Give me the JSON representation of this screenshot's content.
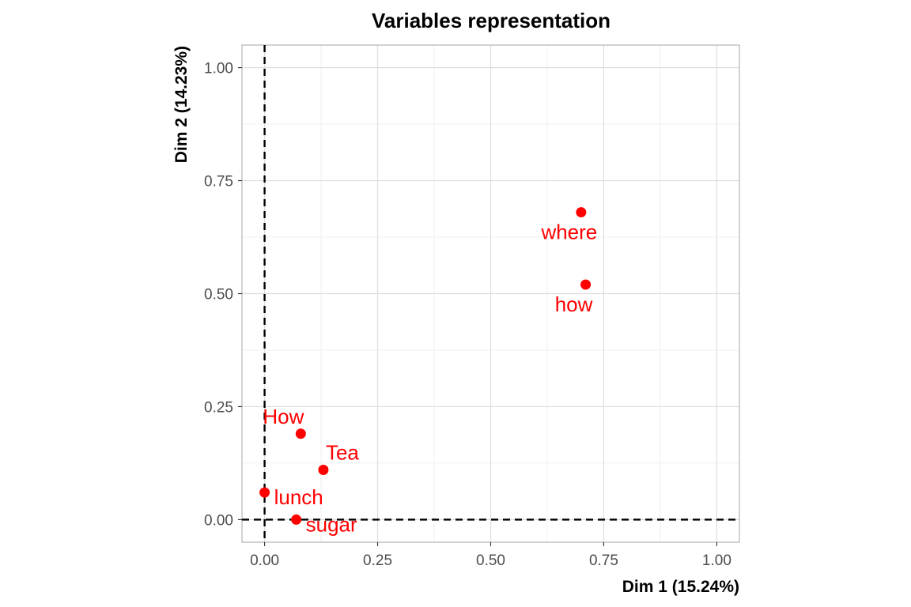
{
  "chart_data": {
    "type": "scatter",
    "title": "Variables representation",
    "xlabel": "Dim 1 (15.24%)",
    "ylabel": "Dim 2 (14.23%)",
    "xlim": [
      -0.05,
      1.05
    ],
    "ylim": [
      -0.05,
      1.05
    ],
    "x_ticks": [
      0.0,
      0.25,
      0.5,
      0.75,
      1.0
    ],
    "x_tick_labels": [
      "0.00",
      "0.25",
      "0.50",
      "0.75",
      "1.00"
    ],
    "y_ticks": [
      0.0,
      0.25,
      0.5,
      0.75,
      1.0
    ],
    "y_tick_labels": [
      "0.00",
      "0.25",
      "0.50",
      "0.75",
      "1.00"
    ],
    "grid": true,
    "reference_lines": {
      "x": 0,
      "y": 0,
      "style": "dashed"
    },
    "point_color": "#FF0000",
    "points": [
      {
        "label": "where",
        "x": 0.7,
        "y": 0.68,
        "label_pos": "below-left"
      },
      {
        "label": "how",
        "x": 0.71,
        "y": 0.52,
        "label_pos": "below-left"
      },
      {
        "label": "How",
        "x": 0.08,
        "y": 0.19,
        "label_pos": "above-left"
      },
      {
        "label": "Tea",
        "x": 0.13,
        "y": 0.11,
        "label_pos": "above-right"
      },
      {
        "label": "lunch",
        "x": 0.0,
        "y": 0.06,
        "label_pos": "below-right"
      },
      {
        "label": "sugar",
        "x": 0.07,
        "y": 0.0,
        "label_pos": "below-right"
      }
    ]
  }
}
